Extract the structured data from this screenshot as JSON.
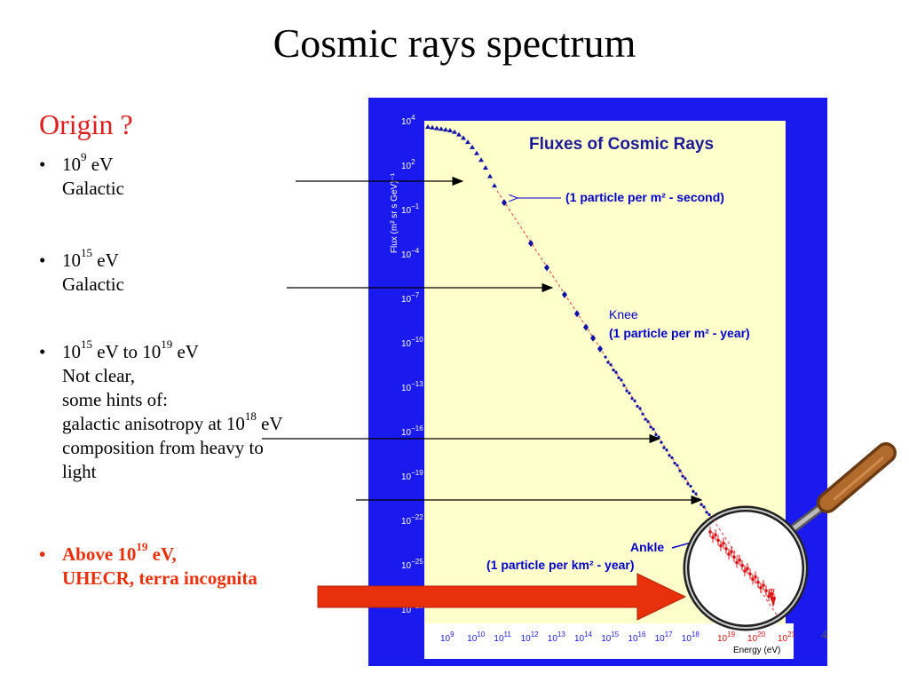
{
  "slide": {
    "title": "Cosmic rays spectrum",
    "section_heading": "Origin ?",
    "page_number": "4"
  },
  "bullets": [
    {
      "marker": "•",
      "lines": [
        [
          "10",
          "9",
          " eV"
        ],
        [
          "Galactic"
        ]
      ]
    },
    {
      "marker": "•",
      "lines": [
        [
          "10",
          "15",
          " eV"
        ],
        [
          "Galactic"
        ]
      ]
    },
    {
      "marker": "•",
      "lines": [
        [
          "10",
          "15",
          " eV to 10",
          "19",
          " eV"
        ],
        [
          "Not clear,"
        ],
        [
          "some hints of:"
        ],
        [
          "galactic anisotropy at 10",
          "18",
          " eV"
        ],
        [
          "composition from heavy to"
        ],
        [
          "light"
        ]
      ]
    },
    {
      "marker": "•",
      "lines": [
        [
          "Above 10",
          "19",
          " eV,"
        ],
        [
          "UHECR,   terra incognita"
        ]
      ],
      "style": "red"
    }
  ],
  "figure": {
    "title": "Fluxes of Cosmic Rays",
    "y_axis_label": "Flux (m² sr s GeV)⁻¹",
    "x_axis_label": "Energy (eV)",
    "y_ticks": [
      {
        "base": "10",
        "exp": "4"
      },
      {
        "base": "10",
        "exp": "2"
      },
      {
        "base": "10",
        "exp": "−1"
      },
      {
        "base": "10",
        "exp": "−4"
      },
      {
        "base": "10",
        "exp": "−7"
      },
      {
        "base": "10",
        "exp": "−10"
      },
      {
        "base": "10",
        "exp": "−13"
      },
      {
        "base": "10",
        "exp": "−16"
      },
      {
        "base": "10",
        "exp": "−19"
      },
      {
        "base": "10",
        "exp": "−22"
      },
      {
        "base": "10",
        "exp": "−25"
      },
      {
        "base": "10",
        "exp": "−28"
      }
    ],
    "x_ticks": [
      {
        "base": "10",
        "exp": "9"
      },
      {
        "base": "10",
        "exp": "10"
      },
      {
        "base": "10",
        "exp": "11"
      },
      {
        "base": "10",
        "exp": "12"
      },
      {
        "base": "10",
        "exp": "13"
      },
      {
        "base": "10",
        "exp": "14"
      },
      {
        "base": "10",
        "exp": "15"
      },
      {
        "base": "10",
        "exp": "16"
      },
      {
        "base": "10",
        "exp": "17"
      },
      {
        "base": "10",
        "exp": "18"
      }
    ],
    "magnified_x_ticks": [
      {
        "base": "10",
        "exp": "19"
      },
      {
        "base": "10",
        "exp": "20"
      },
      {
        "base": "10",
        "exp": "21"
      }
    ],
    "annotations": {
      "one_per_m2_second": "(1 particle per m² - second)",
      "knee": "Knee",
      "one_per_m2_year": "(1 particle per m² - year)",
      "ankle": "Ankle",
      "one_per_km2_year": "(1 particle per km² - year)"
    },
    "colors": {
      "frame": "#1a1aee",
      "plot_bg": "#ffffcc",
      "data": "#1111aa",
      "uhecr_data": "#dd1111",
      "title": "#1a1a99",
      "annotation": "#0000cc",
      "big_arrow": "#e8300c"
    }
  }
}
